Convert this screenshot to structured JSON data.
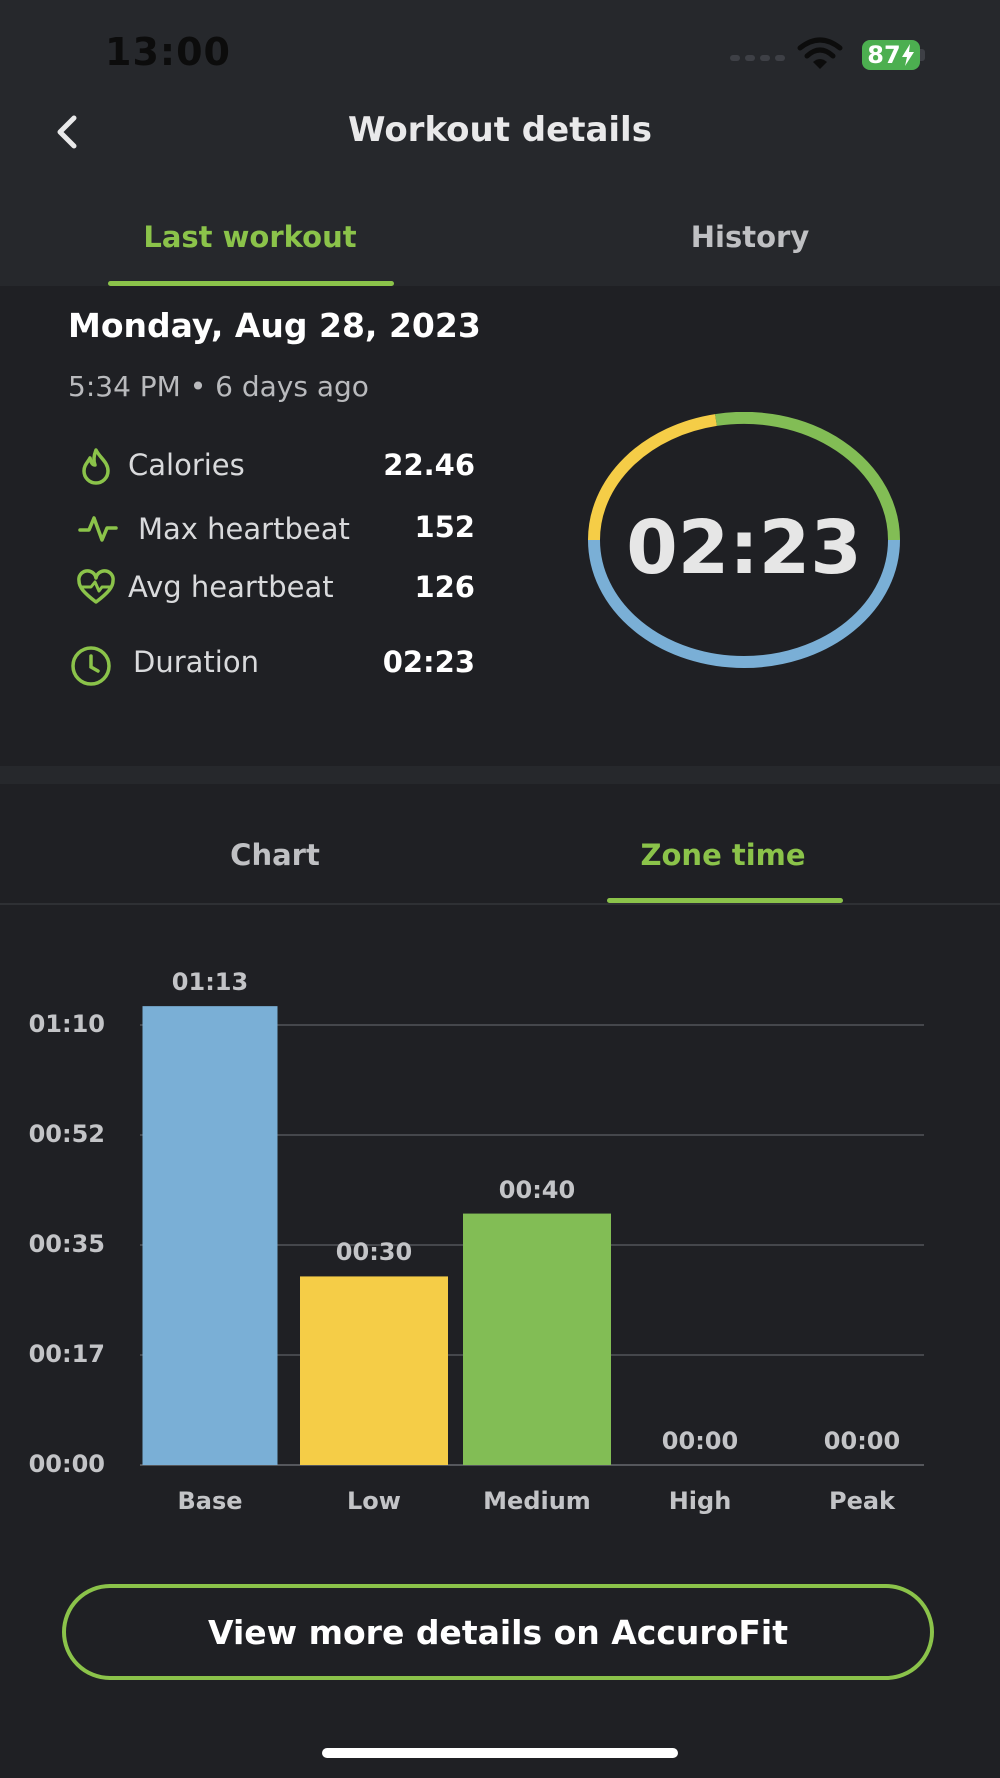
{
  "status_bar": {
    "time": "13:00",
    "battery": "87"
  },
  "header": {
    "title": "Workout details",
    "back_icon": "chevron-left-icon"
  },
  "top_tabs": [
    {
      "label": "Last workout",
      "active": true
    },
    {
      "label": "History",
      "active": false
    }
  ],
  "summary": {
    "date": "Monday, Aug 28, 2023",
    "time_ago": "5:34 PM • 6 days ago",
    "stats": [
      {
        "icon": "flame-icon",
        "label": "Calories",
        "value": "22.46"
      },
      {
        "icon": "heartbeat-icon",
        "label": "Max heartbeat",
        "value": "152"
      },
      {
        "icon": "heart-pulse-icon",
        "label": "Avg heartbeat",
        "value": "126"
      },
      {
        "icon": "clock-icon",
        "label": "Duration",
        "value": "02:23"
      }
    ],
    "ring_value": "02:23"
  },
  "chart_tabs": [
    {
      "label": "Chart",
      "active": false
    },
    {
      "label": "Zone time",
      "active": true
    }
  ],
  "colors": {
    "accent": "#8bc34a",
    "base": "#7aafd6",
    "low": "#f5cd47",
    "medium": "#82bd55"
  },
  "chart_data": {
    "type": "bar",
    "categories": [
      "Base",
      "Low",
      "Medium",
      "High",
      "Peak"
    ],
    "values": [
      73,
      30,
      40,
      0,
      0
    ],
    "data_labels": [
      "01:13",
      "00:30",
      "00:40",
      "00:00",
      "00:00"
    ],
    "colors": [
      "#7aafd6",
      "#f5cd47",
      "#82bd55",
      "#7aafd6",
      "#7aafd6"
    ],
    "yticks": [
      {
        "value": 0,
        "label": "00:00"
      },
      {
        "value": 17.5,
        "label": "00:17"
      },
      {
        "value": 35,
        "label": "00:35"
      },
      {
        "value": 52.5,
        "label": "00:52"
      },
      {
        "value": 70,
        "label": "01:10"
      }
    ],
    "ylim": [
      0,
      70
    ],
    "grid": true
  },
  "cta": {
    "label": "View more details on AccuroFit"
  }
}
